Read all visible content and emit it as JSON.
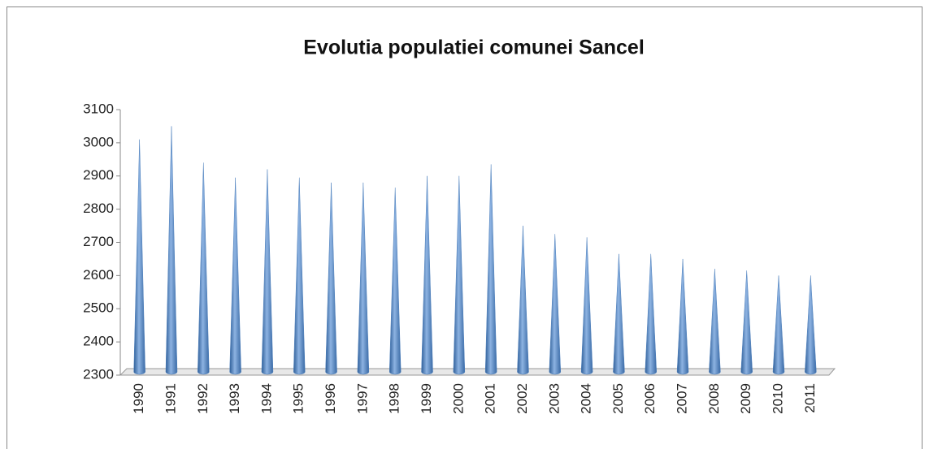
{
  "chart_data": {
    "type": "bar",
    "title": "Evolutia populatiei comunei Sancel",
    "categories": [
      "1990",
      "1991",
      "1992",
      "1993",
      "1994",
      "1995",
      "1996",
      "1997",
      "1998",
      "1999",
      "2000",
      "2001",
      "2002",
      "2003",
      "2004",
      "2005",
      "2006",
      "2007",
      "2008",
      "2009",
      "2010",
      "2011"
    ],
    "values": [
      3010,
      3050,
      2940,
      2895,
      2920,
      2895,
      2880,
      2880,
      2865,
      2900,
      2900,
      2935,
      2750,
      2725,
      2715,
      2665,
      2665,
      2650,
      2620,
      2615,
      2600,
      2600
    ],
    "color": "#4f81bd",
    "ylim": [
      2300,
      3100
    ],
    "yticks": [
      2300,
      2400,
      2500,
      2600,
      2700,
      2800,
      2900,
      3000,
      3100
    ],
    "grid": false
  }
}
